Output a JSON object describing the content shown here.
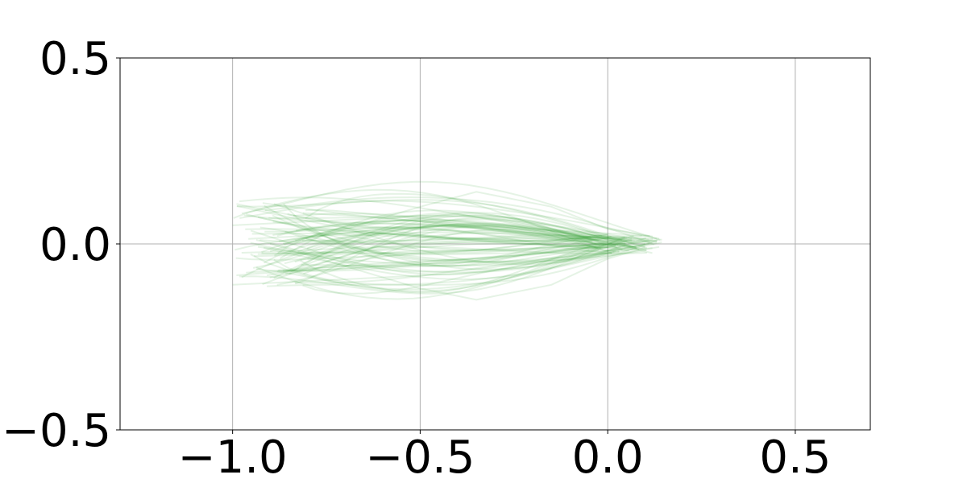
{
  "chart_data": {
    "type": "line",
    "title": "",
    "xlabel": "",
    "ylabel": "",
    "xlim": [
      -1.3,
      0.7
    ],
    "ylim": [
      -0.5,
      0.5
    ],
    "xticks": [
      -1.0,
      -0.5,
      0.0,
      0.5
    ],
    "yticks": [
      -0.5,
      0.0,
      0.5
    ],
    "xtick_labels": [
      "−1.0",
      "−0.5",
      "0.0",
      "0.5"
    ],
    "ytick_labels": [
      "−0.5",
      "0.0",
      "0.5"
    ],
    "grid": true,
    "legend": "none",
    "line_color": "#2ca02c",
    "line_alpha": 0.12,
    "series_description": "ensemble of about 90 thin green trajectories from x between -1.0 and -0.8 converging to near (0.0, 0.0)",
    "series": [
      {
        "x": [
          -1.0,
          -0.8,
          -0.6,
          -0.4,
          -0.2,
          0.0,
          0.1
        ],
        "y": [
          0.05,
          0.06,
          0.07,
          0.08,
          0.05,
          0.01,
          0.0
        ]
      },
      {
        "x": [
          -1.0,
          -0.8,
          -0.6,
          -0.4,
          -0.2,
          0.0,
          0.1
        ],
        "y": [
          -0.11,
          -0.1,
          -0.09,
          -0.08,
          -0.06,
          -0.02,
          0.0
        ]
      },
      {
        "x": [
          -0.92,
          -0.7,
          -0.5,
          -0.3,
          -0.1,
          0.05
        ],
        "y": [
          0.11,
          0.08,
          0.06,
          0.04,
          0.02,
          0.0
        ]
      },
      {
        "x": [
          -0.9,
          -0.7,
          -0.5,
          -0.35,
          -0.15,
          0.0,
          0.12
        ],
        "y": [
          -0.02,
          0.04,
          0.1,
          0.14,
          0.1,
          0.04,
          0.02
        ]
      },
      {
        "x": [
          -0.9,
          -0.7,
          -0.5,
          -0.35,
          -0.15,
          0.0,
          0.1
        ],
        "y": [
          0.0,
          -0.06,
          -0.12,
          -0.15,
          -0.11,
          -0.04,
          -0.01
        ]
      }
    ]
  }
}
